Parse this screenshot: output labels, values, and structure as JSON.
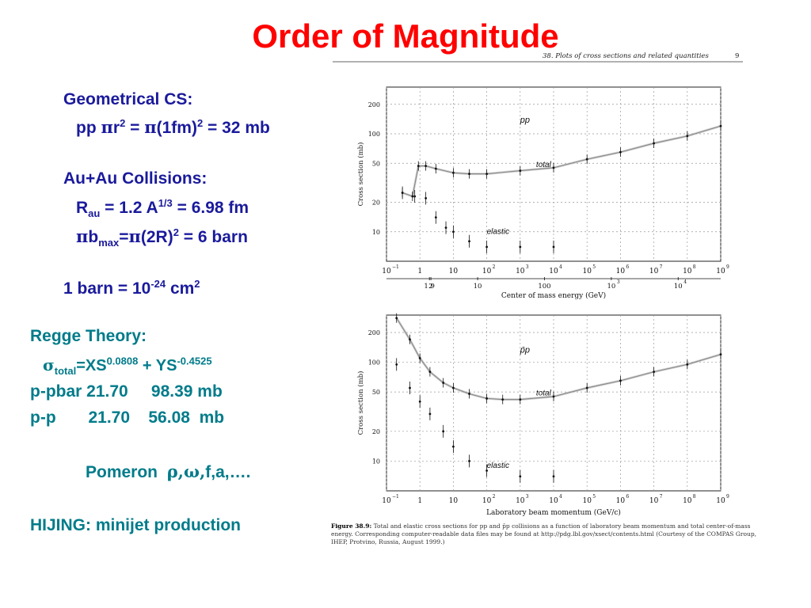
{
  "slide": {
    "title": "Order of Magnitude"
  },
  "left": {
    "geo_heading": "Geometrical CS:",
    "geo_pp": "pp ",
    "geo_pi1": "π",
    "geo_r": "r",
    "geo_sq1": "2",
    "geo_eq": " = ",
    "geo_pi2": "π",
    "geo_1fm": "(1fm)",
    "geo_sq2": "2",
    "geo_result": " = 32 mb",
    "auau_heading": "Au+Au Collisions:",
    "r_R": "R",
    "r_sub": "au",
    "r_eq": " = 1.2 A",
    "r_sup": "1/3",
    "r_result": " = 6.98 fm",
    "b_pi1": "π",
    "b_b": "b",
    "b_sub": "max",
    "b_eq": "=",
    "b_pi2": "π",
    "b_2r": "(2R)",
    "b_sq": "2",
    "b_result": " = 6 barn",
    "barn_a": "1 barn = 10",
    "barn_exp": "-24",
    "barn_cm": " cm",
    "barn_sq": "2",
    "regge_heading": "Regge Theory:",
    "sig": "σ",
    "sig_sub": "total",
    "sig_xs": "=XS",
    "sig_exp1": "0.0808",
    "sig_ys": " + YS",
    "sig_exp2": "-0.4525",
    "ppbar_row": "p-pbar 21.70     98.39 mb",
    "pp_row": "p-p       21.70    56.08  mb",
    "pomeron_label": "Pomeron  ",
    "pomeron_greek": "ρ,ω,",
    "pomeron_rest": "f,a,….",
    "hijing": "HIJING: minijet production"
  },
  "figure": {
    "header_text": "38. Plots of cross sections and related quantities",
    "page_number": "9",
    "caption_label": "Figure 38.9:",
    "caption_text": "Total and elastic cross sections for pp and p̄p collisions as a function of laboratory beam momentum and total center-of-mass energy. Corresponding computer-readable data files may be found at http://pdg.lbl.gov/xsect/contents.html (Courtesy of the COMPAS Group, IHEP, Protvino, Russia, August 1999.)"
  },
  "chart_data": [
    {
      "type": "scatter",
      "title": "",
      "series": [
        {
          "name": "pp",
          "values": []
        },
        {
          "name": "total",
          "x": [
            0.3,
            0.6,
            0.9,
            1.5,
            3,
            10,
            30,
            100,
            1000,
            10000,
            100000,
            1000000,
            10000000,
            100000000,
            1000000000
          ],
          "y": [
            25,
            23,
            47,
            47,
            44,
            40,
            39,
            39,
            42,
            45,
            55,
            65,
            80,
            95,
            120
          ]
        },
        {
          "name": "elastic",
          "x": [
            0.3,
            0.7,
            1.5,
            3,
            6,
            10,
            30,
            100,
            1000,
            10000
          ],
          "y": [
            25,
            23,
            22,
            14,
            11,
            10,
            8,
            7,
            7,
            7
          ]
        }
      ],
      "xscale": "log",
      "yscale": "log",
      "xlim": [
        0.1,
        1000000000
      ],
      "ylim": [
        5,
        300
      ],
      "x_ticks": [
        "10",
        "1",
        "10",
        "10",
        "10",
        "10",
        "10",
        "10",
        "10",
        "10",
        "10"
      ],
      "x_tick_exps": [
        "−1",
        "",
        "",
        "2",
        "3",
        "4",
        "5",
        "6",
        "7",
        "8",
        "9"
      ],
      "y_ticks": [
        "10",
        "20",
        "50",
        "100",
        "200"
      ],
      "y_values": [
        10,
        20,
        50,
        100,
        200
      ],
      "ylabel": "Cross section (mb)",
      "secondary_x_ticks": [
        "1.9",
        "2",
        "10",
        "100",
        "10",
        "10"
      ],
      "secondary_x_tick_exps": [
        "",
        "",
        "",
        "",
        "3",
        "4"
      ],
      "secondary_x_values": [
        1.9,
        2,
        10,
        100,
        1000,
        10000
      ],
      "secondary_xlabel": "Center of mass energy (GeV)",
      "grid": true
    },
    {
      "type": "scatter",
      "title": "",
      "series": [
        {
          "name": "p̄p",
          "values": []
        },
        {
          "name": "total",
          "x": [
            0.2,
            0.5,
            1,
            2,
            5,
            10,
            30,
            100,
            300,
            1000,
            10000,
            100000,
            1000000,
            10000000,
            100000000,
            1000000000
          ],
          "y": [
            280,
            170,
            110,
            80,
            62,
            55,
            48,
            43,
            42,
            42,
            45,
            55,
            65,
            80,
            95,
            120
          ]
        },
        {
          "name": "elastic",
          "x": [
            0.2,
            0.5,
            1,
            2,
            5,
            10,
            30,
            100,
            1000,
            10000
          ],
          "y": [
            95,
            55,
            40,
            30,
            20,
            14,
            10,
            8,
            7,
            7
          ]
        }
      ],
      "xscale": "log",
      "yscale": "log",
      "xlim": [
        0.1,
        1000000000
      ],
      "ylim": [
        5,
        300
      ],
      "x_ticks": [
        "10",
        "1",
        "10",
        "10",
        "10",
        "10",
        "10",
        "10",
        "10",
        "10",
        "10"
      ],
      "x_tick_exps": [
        "−1",
        "",
        "",
        "2",
        "3",
        "4",
        "5",
        "6",
        "7",
        "8",
        "9"
      ],
      "y_ticks": [
        "10",
        "20",
        "50",
        "100",
        "200"
      ],
      "y_values": [
        10,
        20,
        50,
        100,
        200
      ],
      "ylabel": "Cross section (mb)",
      "xlabel": "Laboratory beam momentum (GeV/c)",
      "grid": true
    }
  ]
}
